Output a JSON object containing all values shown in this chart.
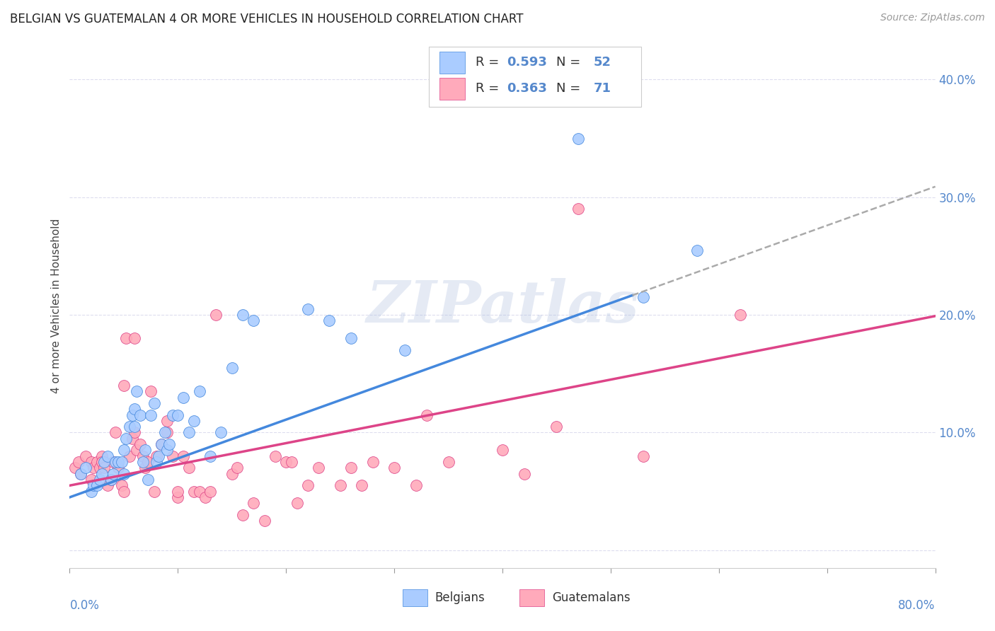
{
  "title": "BELGIAN VS GUATEMALAN 4 OR MORE VEHICLES IN HOUSEHOLD CORRELATION CHART",
  "source": "Source: ZipAtlas.com",
  "ylabel": "4 or more Vehicles in Household",
  "xlim": [
    0.0,
    80.0
  ],
  "ylim": [
    -1.5,
    43.0
  ],
  "yticks": [
    0.0,
    10.0,
    20.0,
    30.0,
    40.0
  ],
  "ytick_labels": [
    "",
    "10.0%",
    "20.0%",
    "30.0%",
    "40.0%"
  ],
  "xticks": [
    0.0,
    10.0,
    20.0,
    30.0,
    40.0,
    50.0,
    60.0,
    70.0,
    80.0
  ],
  "belgian_color": "#aaccff",
  "guatemalan_color": "#ffaabb",
  "belgian_line_color": "#4488dd",
  "guatemalan_line_color": "#dd4488",
  "R_belgian": "0.593",
  "N_belgian": "52",
  "R_guatemalan": "0.363",
  "N_guatemalan": "71",
  "watermark": "ZIPatlas",
  "watermark_color": "#aabbdd",
  "background_color": "#ffffff",
  "grid_color": "#ddddee",
  "accent_color": "#5588cc",
  "legend_label_belgian": "Belgians",
  "legend_label_guatemalan": "Guatemalans",
  "belgian_x": [
    1.0,
    1.5,
    2.0,
    2.2,
    2.5,
    2.8,
    3.0,
    3.2,
    3.5,
    3.8,
    4.0,
    4.2,
    4.5,
    4.8,
    5.0,
    5.0,
    5.2,
    5.5,
    5.8,
    6.0,
    6.0,
    6.2,
    6.5,
    6.8,
    7.0,
    7.2,
    7.5,
    7.8,
    8.0,
    8.2,
    8.5,
    8.8,
    9.0,
    9.2,
    9.5,
    10.0,
    10.5,
    11.0,
    11.5,
    12.0,
    13.0,
    14.0,
    15.0,
    16.0,
    17.0,
    22.0,
    24.0,
    26.0,
    31.0,
    47.0,
    53.0,
    58.0
  ],
  "belgian_y": [
    6.5,
    7.0,
    5.0,
    5.5,
    5.5,
    6.0,
    6.5,
    7.5,
    8.0,
    6.0,
    6.5,
    7.5,
    7.5,
    7.5,
    6.5,
    8.5,
    9.5,
    10.5,
    11.5,
    10.5,
    12.0,
    13.5,
    11.5,
    7.5,
    8.5,
    6.0,
    11.5,
    12.5,
    7.5,
    8.0,
    9.0,
    10.0,
    8.5,
    9.0,
    11.5,
    11.5,
    13.0,
    10.0,
    11.0,
    13.5,
    8.0,
    10.0,
    15.5,
    20.0,
    19.5,
    20.5,
    19.5,
    18.0,
    17.0,
    35.0,
    21.5,
    25.5
  ],
  "guatemalan_x": [
    0.5,
    0.8,
    1.0,
    1.5,
    2.0,
    2.0,
    2.2,
    2.5,
    2.8,
    3.0,
    3.0,
    3.2,
    3.5,
    3.8,
    4.0,
    4.2,
    4.5,
    4.8,
    5.0,
    5.0,
    5.2,
    5.5,
    5.8,
    6.0,
    6.0,
    6.2,
    6.5,
    6.8,
    7.0,
    7.2,
    7.5,
    7.8,
    8.0,
    8.5,
    9.0,
    9.0,
    9.5,
    10.0,
    10.0,
    10.5,
    11.0,
    11.5,
    12.0,
    12.5,
    13.0,
    13.5,
    15.0,
    15.5,
    16.0,
    17.0,
    18.0,
    19.0,
    20.0,
    20.5,
    21.0,
    22.0,
    23.0,
    25.0,
    26.0,
    27.0,
    28.0,
    30.0,
    32.0,
    33.0,
    35.0,
    40.0,
    42.0,
    45.0,
    47.0,
    53.0,
    62.0
  ],
  "guatemalan_y": [
    7.0,
    7.5,
    6.5,
    8.0,
    6.0,
    7.5,
    7.0,
    7.5,
    7.0,
    8.0,
    7.5,
    7.0,
    5.5,
    6.0,
    7.5,
    10.0,
    7.0,
    5.5,
    5.0,
    14.0,
    18.0,
    8.0,
    9.5,
    10.0,
    18.0,
    8.5,
    9.0,
    8.0,
    7.0,
    7.5,
    13.5,
    5.0,
    8.0,
    9.0,
    11.0,
    10.0,
    8.0,
    4.5,
    5.0,
    8.0,
    7.0,
    5.0,
    5.0,
    4.5,
    5.0,
    20.0,
    6.5,
    7.0,
    3.0,
    4.0,
    2.5,
    8.0,
    7.5,
    7.5,
    4.0,
    5.5,
    7.0,
    5.5,
    7.0,
    5.5,
    7.5,
    7.0,
    5.5,
    11.5,
    7.5,
    8.5,
    6.5,
    10.5,
    29.0,
    8.0,
    20.0
  ],
  "belgian_reg_slope": 0.33,
  "belgian_reg_intercept": 4.5,
  "guatemalan_reg_slope": 0.18,
  "guatemalan_reg_intercept": 5.5,
  "belgian_solid_end": 52.0,
  "belgian_dash_start": 52.0,
  "belgian_dash_end": 80.0
}
